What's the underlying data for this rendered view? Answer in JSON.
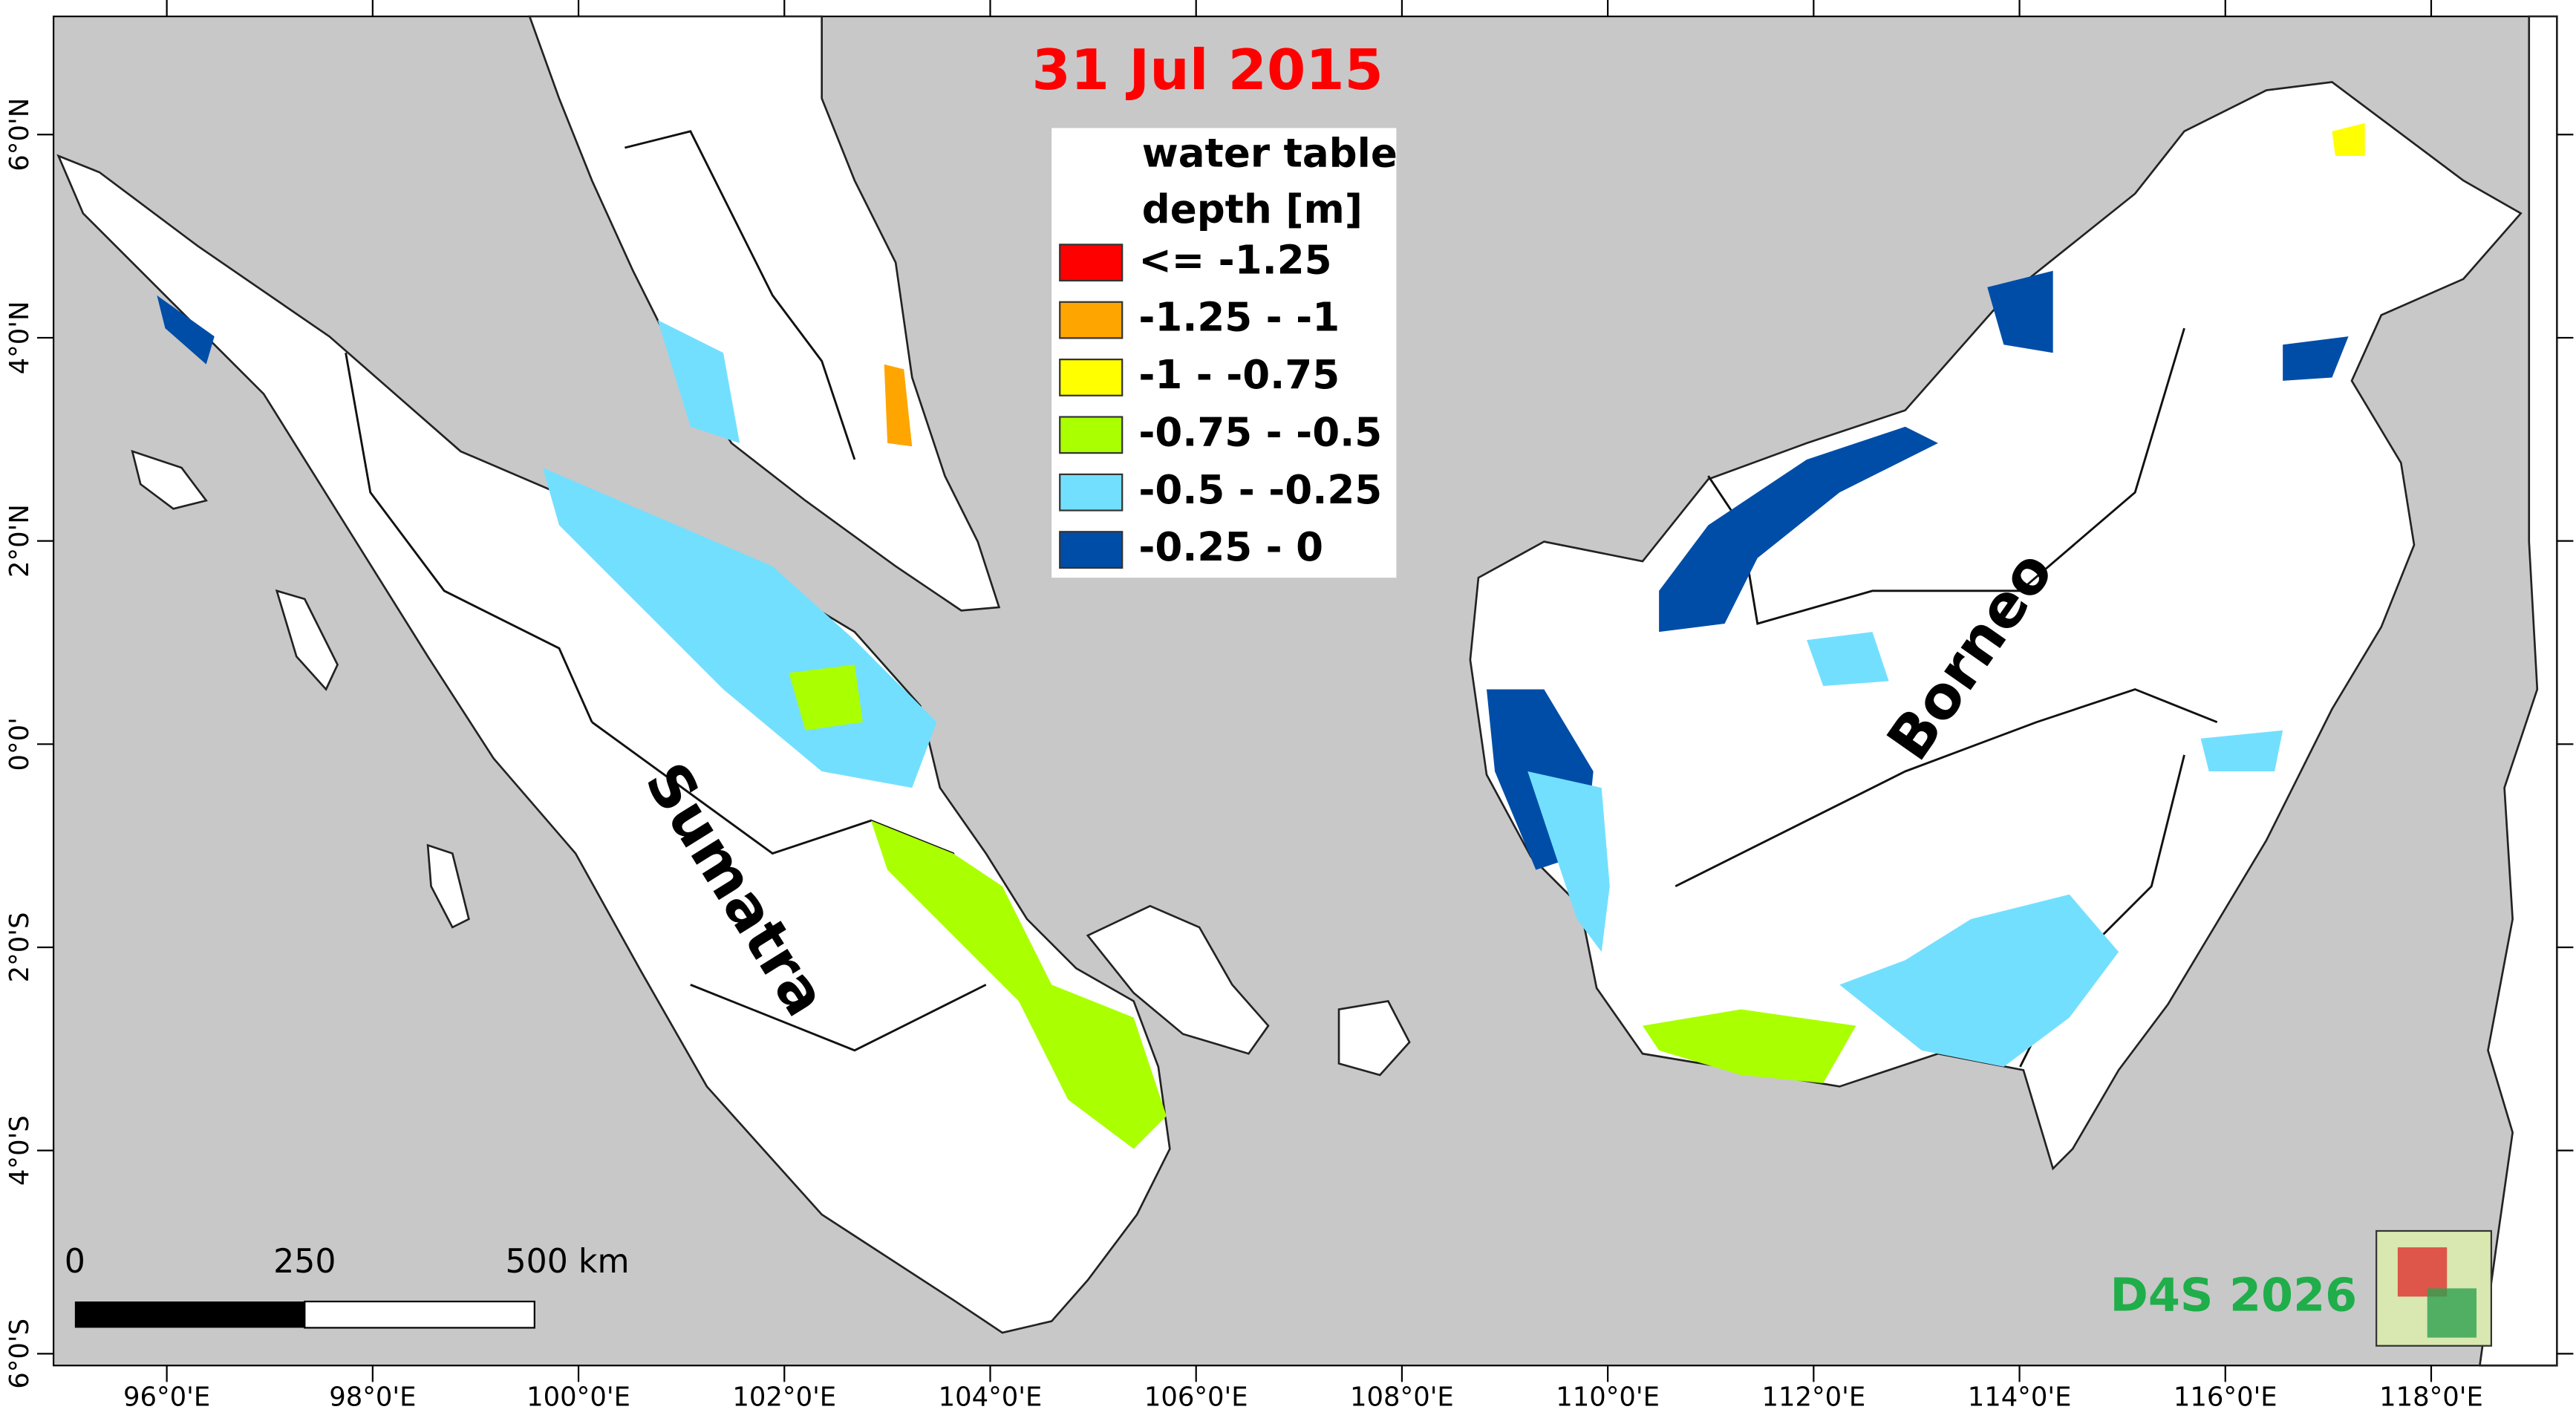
{
  "title": "31 Jul 2015",
  "legend": {
    "title_lines": [
      "water table",
      "depth [m]"
    ],
    "items": [
      {
        "label": "<= -1.25",
        "color": "#ff0000"
      },
      {
        "label": "-1.25 - -1",
        "color": "#ffa500"
      },
      {
        "label": "-1 - -0.75",
        "color": "#ffff00"
      },
      {
        "label": "-0.75 - -0.5",
        "color": "#aaff00"
      },
      {
        "label": "-0.5 - -0.25",
        "color": "#73dfff"
      },
      {
        "label": "-0.25 - 0",
        "color": "#004da8"
      }
    ]
  },
  "places": [
    "Sumatra",
    "Borneo"
  ],
  "scale_bar": [
    "0",
    "250",
    "500 km"
  ],
  "x_axis": [
    "96°0'E",
    "98°0'E",
    "100°0'E",
    "102°0'E",
    "104°0'E",
    "106°0'E",
    "108°0'E",
    "110°0'E",
    "112°0'E",
    "114°0'E",
    "116°0'E",
    "118°0'E"
  ],
  "y_axis": [
    "6°0'N",
    "4°0'N",
    "2°0'N",
    "0°0'",
    "2°0'S",
    "4°0'S",
    "6°0'S"
  ],
  "credit": "D4S 2026"
}
